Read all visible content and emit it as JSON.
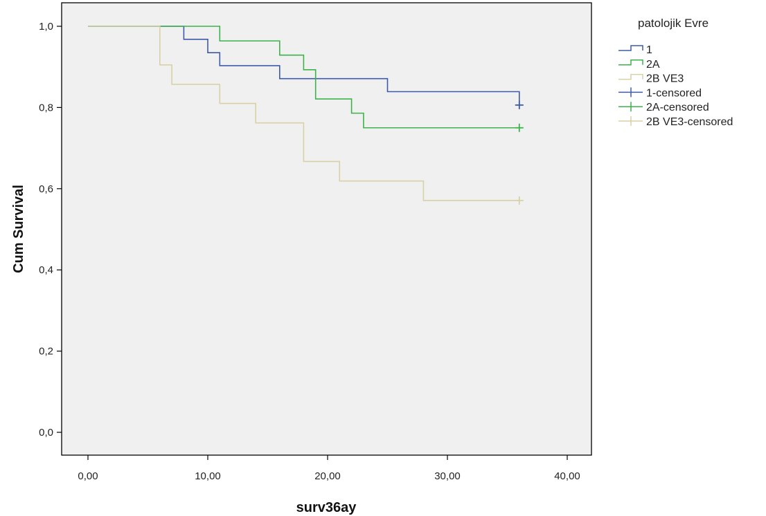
{
  "chart_data": {
    "type": "line",
    "subtype": "kaplan-meier-step",
    "xlabel": "surv36ay",
    "ylabel": "Cum Survival",
    "xlim": [
      0,
      40
    ],
    "ylim": [
      0,
      1
    ],
    "xticks": [
      "0,00",
      "10,00",
      "20,00",
      "30,00",
      "40,00"
    ],
    "yticks": [
      "0,0",
      "0,2",
      "0,4",
      "0,6",
      "0,8",
      "1,0"
    ],
    "xtick_values": [
      0,
      10,
      20,
      30,
      40
    ],
    "ytick_values": [
      0,
      0.2,
      0.4,
      0.6,
      0.8,
      1.0
    ],
    "grid": false,
    "plot_background": "#f0f0f0",
    "legend": {
      "title": "patolojik Evre",
      "placement": "right",
      "entries": [
        "1",
        "2A",
        "2B VE3",
        "1-censored",
        "2A-censored",
        "2B VE3-censored"
      ]
    },
    "series": [
      {
        "name": "1",
        "color": "#3d5aaa",
        "points": [
          [
            0,
            1.0
          ],
          [
            8,
            0.968
          ],
          [
            10,
            0.935
          ],
          [
            11,
            0.903
          ],
          [
            16,
            0.871
          ],
          [
            25,
            0.839
          ],
          [
            36,
            0.806
          ]
        ],
        "censored": [
          [
            36,
            0.806
          ]
        ]
      },
      {
        "name": "2A",
        "color": "#3cb34a",
        "points": [
          [
            0,
            1.0
          ],
          [
            11,
            0.964
          ],
          [
            16,
            0.929
          ],
          [
            18,
            0.893
          ],
          [
            19,
            0.821
          ],
          [
            22,
            0.786
          ],
          [
            23,
            0.75
          ],
          [
            36,
            0.75
          ]
        ],
        "censored": [
          [
            36,
            0.75
          ]
        ]
      },
      {
        "name": "2B VE3",
        "color": "#d8d1a6",
        "points": [
          [
            0,
            1.0
          ],
          [
            6,
            0.905
          ],
          [
            7,
            0.857
          ],
          [
            11,
            0.81
          ],
          [
            14,
            0.762
          ],
          [
            18,
            0.667
          ],
          [
            21,
            0.619
          ],
          [
            28,
            0.571
          ],
          [
            36,
            0.571
          ]
        ],
        "censored": [
          [
            36,
            0.571
          ]
        ]
      }
    ]
  }
}
